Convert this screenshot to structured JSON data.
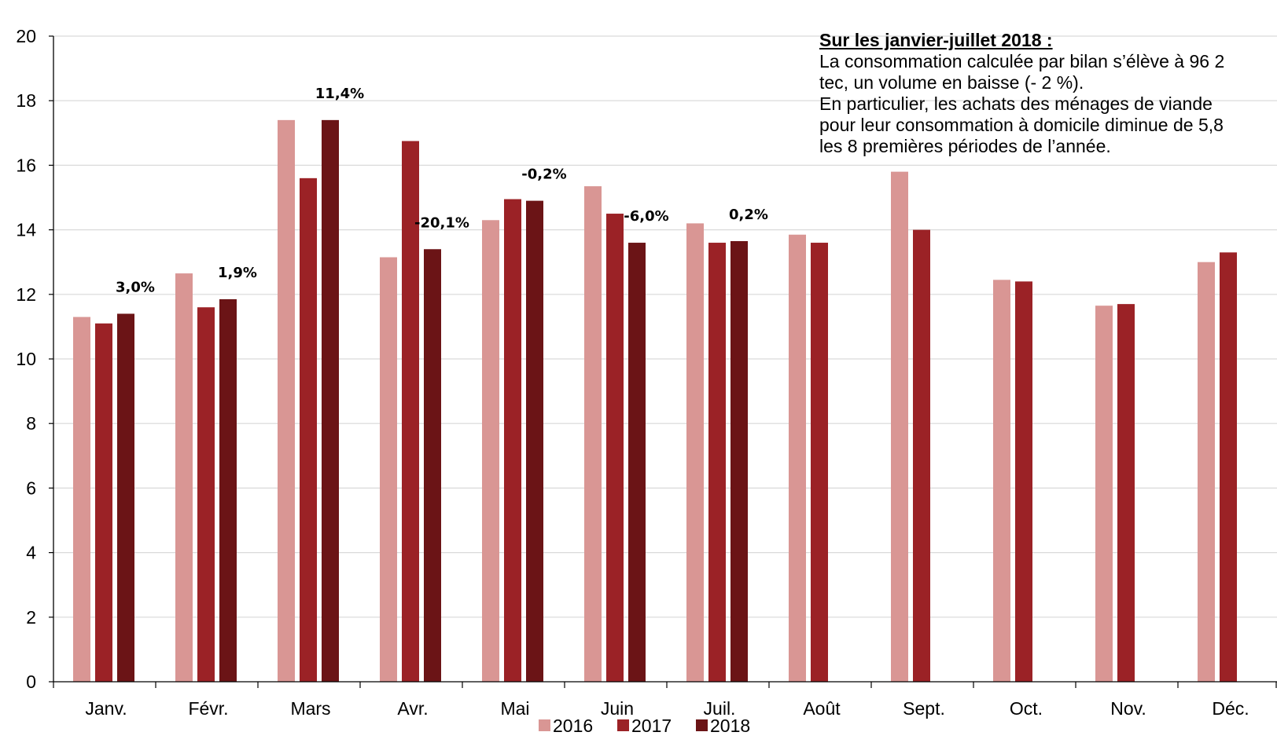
{
  "chart_data": {
    "type": "bar",
    "title": "",
    "xlabel": "",
    "ylabel": "",
    "ylim": [
      0,
      20
    ],
    "yticks": [
      0,
      2,
      4,
      6,
      8,
      10,
      12,
      14,
      16,
      18,
      20
    ],
    "grid": true,
    "legend_position": "bottom",
    "categories": [
      "Janv.",
      "Févr.",
      "Mars",
      "Avr.",
      "Mai",
      "Juin",
      "Juil.",
      "Août",
      "Sept.",
      "Oct.",
      "Nov.",
      "Déc."
    ],
    "series": [
      {
        "name": "2016",
        "color": "#D99694",
        "values": [
          11.3,
          12.65,
          17.4,
          13.15,
          14.3,
          15.35,
          14.2,
          13.85,
          15.8,
          12.45,
          11.65,
          13.0
        ]
      },
      {
        "name": "2017",
        "color": "#9B2226",
        "values": [
          11.1,
          11.6,
          15.6,
          16.75,
          14.95,
          14.5,
          13.6,
          13.6,
          14.0,
          12.4,
          11.7,
          13.3
        ]
      },
      {
        "name": "2018",
        "color": "#6B1416",
        "values": [
          11.4,
          11.85,
          17.4,
          13.4,
          14.9,
          13.6,
          13.65,
          null,
          null,
          null,
          null,
          null
        ]
      }
    ],
    "annotations": [
      {
        "category": "Janv.",
        "text": "3,0%"
      },
      {
        "category": "Févr.",
        "text": "1,9%"
      },
      {
        "category": "Mars",
        "text": "11,4%"
      },
      {
        "category": "Avr.",
        "text": "-20,1%"
      },
      {
        "category": "Mai",
        "text": "-0,2%"
      },
      {
        "category": "Juin",
        "text": "-6,0%"
      },
      {
        "category": "Juil.",
        "text": "0,2%"
      }
    ]
  },
  "note": {
    "title": "Sur les janvier-juillet 2018 :",
    "lines": [
      "La consommation calculée par bilan s’élève à 96 2",
      "tec, un volume en baisse (- 2 %).",
      "En particulier, les achats des ménages de viande",
      "pour leur consommation à domicile diminue de 5,8",
      "les 8 premières périodes de l’année."
    ]
  }
}
